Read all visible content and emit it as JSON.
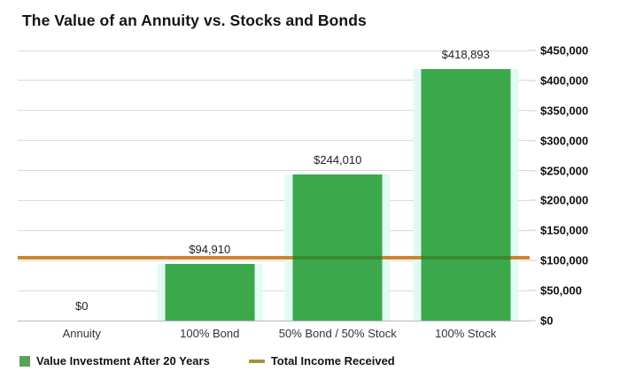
{
  "header": {
    "title": "The Value of an Annuity vs. Stocks and Bonds"
  },
  "chart_data": {
    "type": "bar",
    "title": "The Value of an Annuity vs. Stocks and Bonds",
    "categories": [
      "Annuity",
      "100% Bond",
      "50% Bond / 50% Stock",
      "100% Stock"
    ],
    "series": [
      {
        "name": "Value Investment After 20 Years",
        "type": "bar",
        "values": [
          0,
          94910,
          244010,
          418893
        ],
        "data_labels": [
          "$0",
          "$94,910",
          "$244,010",
          "$418,893"
        ],
        "color": "#3ca84c"
      },
      {
        "name": "Total Income Received",
        "type": "line",
        "values": [
          105000,
          105000,
          105000,
          105000
        ],
        "color": "#ce862e"
      }
    ],
    "ylim": [
      0,
      450000
    ],
    "ytick_step": 50000,
    "ytick_labels": [
      "$450,000",
      "$400,000",
      "$350,000",
      "$300,000",
      "$250,000",
      "$200,000",
      "$150,000",
      "$100,000",
      "$50,000",
      "$0"
    ],
    "xlabel": "",
    "ylabel": "",
    "grid": true,
    "y_axis_side": "right",
    "legend_position": "bottom-left"
  },
  "legend": {
    "bar_label": "Value Investment After 20 Years",
    "line_label": "Total Income Received"
  },
  "colors": {
    "bar_green": "#3ca84c",
    "bar_glow": "#e1faf4",
    "income_line_orange": "#ce862e",
    "legend_dash_olive": "#a8933a",
    "gridline": "#dadada"
  }
}
